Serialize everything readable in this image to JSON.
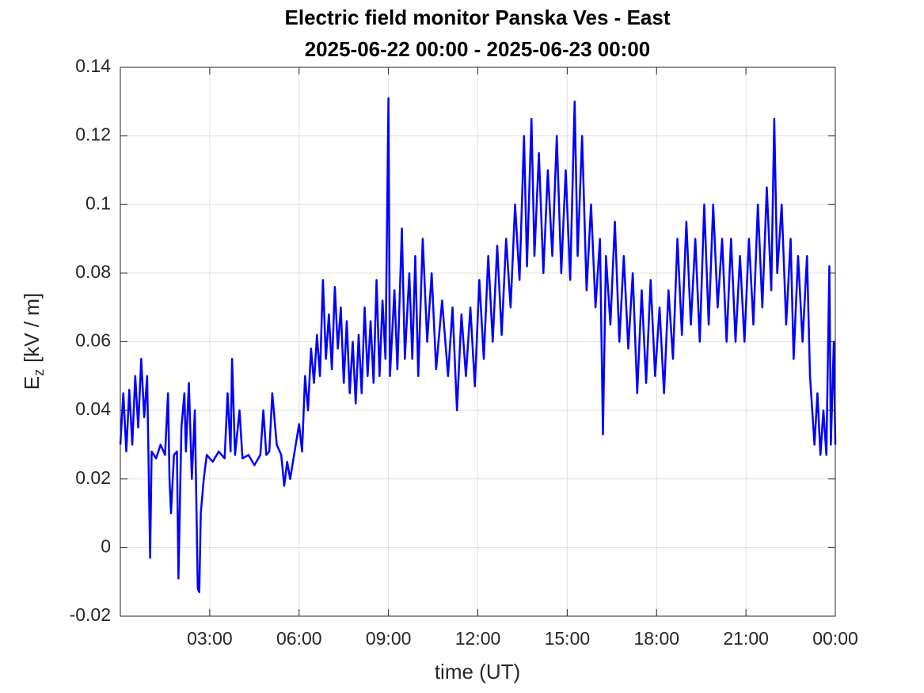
{
  "chart_data": {
    "type": "line",
    "title": "Electric field monitor Panska Ves - East",
    "subtitle": "2025-06-22 00:00 - 2025-06-23 00:00",
    "x_label": "time (UT)",
    "y_label": {
      "main": "E",
      "sub": "z",
      "unit": "[kV / m]"
    },
    "color": "#0000ff",
    "grid": true,
    "xlim": [
      0,
      24
    ],
    "xticks": [
      {
        "value": 3,
        "label": "03:00"
      },
      {
        "value": 6,
        "label": "06:00"
      },
      {
        "value": 9,
        "label": "09:00"
      },
      {
        "value": 12,
        "label": "12:00"
      },
      {
        "value": 15,
        "label": "15:00"
      },
      {
        "value": 18,
        "label": "18:00"
      },
      {
        "value": 21,
        "label": "21:00"
      },
      {
        "value": 24,
        "label": "00:00"
      }
    ],
    "ylim": [
      -0.02,
      0.14
    ],
    "yticks": [
      -0.02,
      0,
      0.02,
      0.04,
      0.06,
      0.08,
      0.1,
      0.12,
      0.14
    ],
    "x": [
      0,
      0.1,
      0.2,
      0.3,
      0.4,
      0.5,
      0.6,
      0.7,
      0.8,
      0.9,
      1.0,
      1.05,
      1.2,
      1.35,
      1.5,
      1.6,
      1.65,
      1.7,
      1.8,
      1.9,
      1.95,
      2.05,
      2.15,
      2.2,
      2.3,
      2.4,
      2.5,
      2.6,
      2.65,
      2.7,
      2.8,
      2.9,
      3.1,
      3.3,
      3.5,
      3.6,
      3.7,
      3.75,
      3.85,
      4.0,
      4.1,
      4.3,
      4.5,
      4.7,
      4.8,
      4.9,
      5.0,
      5.1,
      5.25,
      5.4,
      5.5,
      5.6,
      5.7,
      5.85,
      6.0,
      6.1,
      6.2,
      6.3,
      6.4,
      6.5,
      6.6,
      6.7,
      6.8,
      6.9,
      7.0,
      7.1,
      7.2,
      7.3,
      7.4,
      7.5,
      7.6,
      7.7,
      7.8,
      7.9,
      8.0,
      8.1,
      8.2,
      8.3,
      8.4,
      8.5,
      8.6,
      8.7,
      8.8,
      8.9,
      9.0,
      9.05,
      9.2,
      9.3,
      9.45,
      9.55,
      9.7,
      9.8,
      9.9,
      10.0,
      10.15,
      10.3,
      10.45,
      10.6,
      10.8,
      11.0,
      11.15,
      11.3,
      11.45,
      11.6,
      11.75,
      11.9,
      12.05,
      12.2,
      12.35,
      12.5,
      12.65,
      12.8,
      12.95,
      13.1,
      13.25,
      13.4,
      13.55,
      13.65,
      13.8,
      13.9,
      14.05,
      14.2,
      14.35,
      14.5,
      14.65,
      14.8,
      14.95,
      15.1,
      15.25,
      15.35,
      15.5,
      15.65,
      15.8,
      15.95,
      16.1,
      16.2,
      16.3,
      16.45,
      16.6,
      16.75,
      16.9,
      17.05,
      17.2,
      17.35,
      17.5,
      17.65,
      17.8,
      17.95,
      18.1,
      18.25,
      18.4,
      18.55,
      18.7,
      18.85,
      19.0,
      19.15,
      19.3,
      19.45,
      19.6,
      19.75,
      19.9,
      20.05,
      20.2,
      20.35,
      20.5,
      20.65,
      20.8,
      20.95,
      21.1,
      21.25,
      21.4,
      21.55,
      21.7,
      21.85,
      21.95,
      22.05,
      22.2,
      22.35,
      22.5,
      22.6,
      22.75,
      22.9,
      23.05,
      23.15,
      23.3,
      23.4,
      23.5,
      23.6,
      23.7,
      23.8,
      23.85,
      23.95,
      24.0
    ],
    "values": [
      0.03,
      0.045,
      0.028,
      0.046,
      0.03,
      0.05,
      0.035,
      0.055,
      0.038,
      0.05,
      -0.003,
      0.028,
      0.026,
      0.03,
      0.027,
      0.045,
      0.02,
      0.01,
      0.027,
      0.028,
      -0.009,
      0.035,
      0.045,
      0.028,
      0.048,
      0.02,
      0.04,
      -0.012,
      -0.013,
      0.01,
      0.02,
      0.027,
      0.025,
      0.028,
      0.026,
      0.045,
      0.028,
      0.055,
      0.027,
      0.04,
      0.026,
      0.027,
      0.024,
      0.027,
      0.04,
      0.027,
      0.028,
      0.045,
      0.03,
      0.027,
      0.018,
      0.025,
      0.02,
      0.028,
      0.036,
      0.028,
      0.05,
      0.04,
      0.058,
      0.048,
      0.062,
      0.05,
      0.078,
      0.055,
      0.068,
      0.052,
      0.076,
      0.058,
      0.07,
      0.048,
      0.066,
      0.045,
      0.06,
      0.042,
      0.062,
      0.045,
      0.07,
      0.05,
      0.066,
      0.048,
      0.078,
      0.05,
      0.072,
      0.055,
      0.131,
      0.05,
      0.075,
      0.052,
      0.093,
      0.055,
      0.08,
      0.055,
      0.085,
      0.05,
      0.09,
      0.06,
      0.08,
      0.052,
      0.072,
      0.05,
      0.07,
      0.04,
      0.068,
      0.05,
      0.07,
      0.047,
      0.078,
      0.055,
      0.085,
      0.06,
      0.088,
      0.062,
      0.09,
      0.07,
      0.1,
      0.078,
      0.12,
      0.082,
      0.125,
      0.085,
      0.115,
      0.08,
      0.11,
      0.085,
      0.12,
      0.08,
      0.11,
      0.078,
      0.13,
      0.085,
      0.12,
      0.075,
      0.1,
      0.07,
      0.09,
      0.033,
      0.085,
      0.065,
      0.095,
      0.06,
      0.085,
      0.058,
      0.08,
      0.045,
      0.075,
      0.048,
      0.078,
      0.05,
      0.07,
      0.045,
      0.075,
      0.055,
      0.09,
      0.062,
      0.095,
      0.065,
      0.09,
      0.06,
      0.1,
      0.065,
      0.1,
      0.07,
      0.09,
      0.06,
      0.09,
      0.06,
      0.085,
      0.06,
      0.09,
      0.065,
      0.1,
      0.07,
      0.105,
      0.075,
      0.125,
      0.08,
      0.1,
      0.065,
      0.09,
      0.055,
      0.085,
      0.06,
      0.085,
      0.05,
      0.03,
      0.045,
      0.027,
      0.04,
      0.027,
      0.082,
      0.03,
      0.06,
      0.03
    ]
  }
}
